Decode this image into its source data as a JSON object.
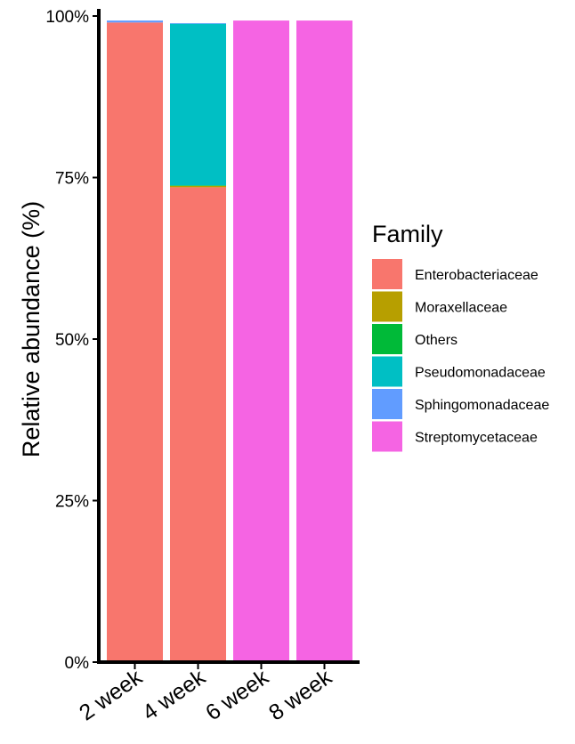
{
  "chart_data": {
    "type": "bar",
    "stacked": true,
    "categories": [
      "2 week",
      "4 week",
      "6 week",
      "8 week"
    ],
    "ylabel": "Relative abundance (%)",
    "ylim": [
      0,
      100
    ],
    "yticks": [
      "0%",
      "25%",
      "50%",
      "75%",
      "100%"
    ],
    "ytick_values": [
      0,
      25,
      50,
      75,
      100
    ],
    "grid": false,
    "legend": {
      "title": "Family",
      "position": "right"
    },
    "series": [
      {
        "name": "Enterobacteriaceae",
        "color": "#F8766D",
        "values": [
          99.0,
          73.5,
          0,
          0
        ]
      },
      {
        "name": "Moraxellaceae",
        "color": "#B79F00",
        "values": [
          0,
          0.2,
          0,
          0
        ]
      },
      {
        "name": "Others",
        "color": "#00BA38",
        "values": [
          0,
          0.1,
          0,
          0
        ]
      },
      {
        "name": "Pseudomonadaceae",
        "color": "#00BFC4",
        "values": [
          0,
          25.0,
          0,
          0
        ]
      },
      {
        "name": "Sphingomonadaceae",
        "color": "#619CFF",
        "values": [
          0.3,
          0.1,
          0,
          0
        ]
      },
      {
        "name": "Streptomycetaceae",
        "color": "#F564E3",
        "values": [
          0,
          0,
          99.3,
          99.3
        ]
      }
    ]
  }
}
